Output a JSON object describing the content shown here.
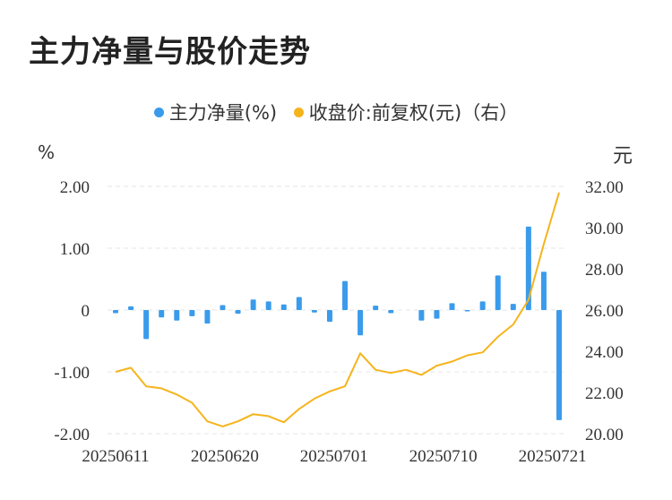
{
  "title": "主力净量与股价走势",
  "legend": {
    "bar_label": "主力净量(%)",
    "line_label": "收盘价:前复权(元)（右）"
  },
  "units": {
    "left": "%",
    "right": "元"
  },
  "colors": {
    "bar": "#3a9bec",
    "line": "#f5b41c",
    "grid": "#e6e6e6"
  },
  "chart_data": {
    "type": "bar+line",
    "x_tick_labels": [
      "20250611",
      "20250620",
      "20250701",
      "20250710",
      "20250721"
    ],
    "left_axis": {
      "ylim": [
        -2,
        2
      ],
      "ticks": [
        "2.00",
        "1.00",
        "0",
        "-1.00",
        "-2.00"
      ]
    },
    "right_axis": {
      "ylim": [
        20,
        32
      ],
      "ticks": [
        "32.00",
        "30.00",
        "28.00",
        "26.00",
        "24.00",
        "22.00",
        "20.00"
      ]
    },
    "grid": "horizontal dashed",
    "series": [
      {
        "values": [
          -0.05,
          0.06,
          -0.47,
          -0.12,
          -0.17,
          -0.1,
          -0.22,
          0.08,
          -0.06,
          0.17,
          0.14,
          0.09,
          0.21,
          -0.04,
          -0.19,
          0.47,
          -0.41,
          0.07,
          -0.05,
          0,
          -0.17,
          -0.14,
          0.11,
          -0.02,
          0.14,
          0.56,
          0.1,
          1.35,
          0.62,
          -1.78
        ]
      },
      {
        "values": [
          23.0,
          23.2,
          22.3,
          22.2,
          21.9,
          21.5,
          20.6,
          20.35,
          20.6,
          20.95,
          20.85,
          20.55,
          21.2,
          21.7,
          22.05,
          22.3,
          23.9,
          23.1,
          22.95,
          23.1,
          22.85,
          23.3,
          23.5,
          23.8,
          23.95,
          24.7,
          25.3,
          26.5,
          29.2,
          31.7
        ]
      }
    ]
  }
}
